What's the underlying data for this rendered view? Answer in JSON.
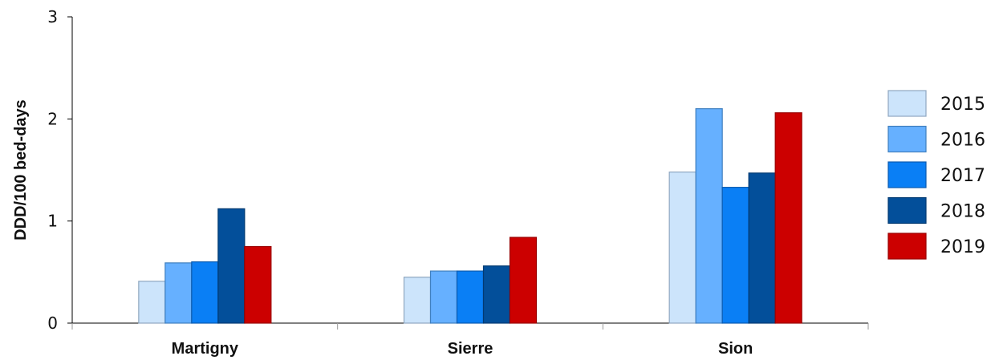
{
  "chart_data": {
    "type": "bar",
    "title": "",
    "xlabel": "",
    "ylabel": "DDD/100 bed-days",
    "ylim": [
      0,
      3
    ],
    "yticks": [
      0,
      1,
      2,
      3
    ],
    "grid": false,
    "legend_position": "right",
    "categories": [
      "Martigny",
      "Sierre",
      "Sion"
    ],
    "series": [
      {
        "name": "2015",
        "color": "#cce4fb",
        "stroke": "#8fa7c0",
        "values": [
          0.41,
          0.45,
          1.48
        ]
      },
      {
        "name": "2016",
        "color": "#66b0ff",
        "stroke": "#3f7fbf",
        "values": [
          0.59,
          0.51,
          2.1
        ]
      },
      {
        "name": "2017",
        "color": "#0a7ff5",
        "stroke": "#0a5bb0",
        "values": [
          0.6,
          0.51,
          1.33
        ]
      },
      {
        "name": "2018",
        "color": "#034f9a",
        "stroke": "#023a72",
        "values": [
          1.12,
          0.56,
          1.47
        ]
      },
      {
        "name": "2019",
        "color": "#cc0000",
        "stroke": "#9a0000",
        "values": [
          0.75,
          0.84,
          2.06
        ]
      }
    ]
  }
}
